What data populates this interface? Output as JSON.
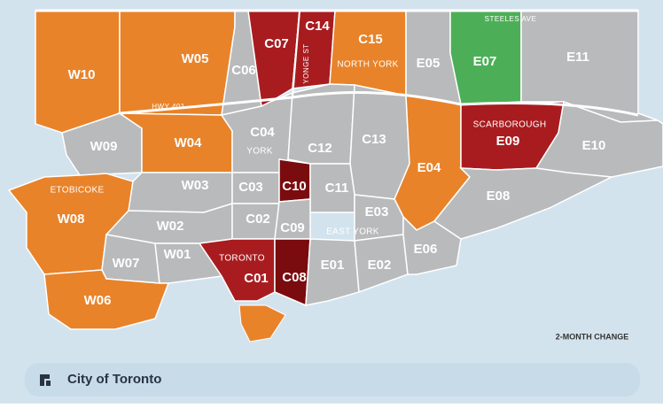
{
  "districts": [
    {
      "label": "W10",
      "color": "#e8832a"
    },
    {
      "label": "W05",
      "color": "#e8832a"
    },
    {
      "label": "C06",
      "color": "#b9babc"
    },
    {
      "label": "C07",
      "color": "#a81c1f"
    },
    {
      "label": "C14",
      "color": "#a81c1f"
    },
    {
      "label": "C15",
      "color": "#e8832a"
    },
    {
      "label": "E05",
      "color": "#b9babc"
    },
    {
      "label": "E07",
      "color": "#4caf57"
    },
    {
      "label": "E11",
      "color": "#b9babc"
    },
    {
      "label": "W09",
      "color": "#b9babc"
    },
    {
      "label": "W04",
      "color": "#e8832a"
    },
    {
      "label": "W08",
      "color": "#e8832a"
    },
    {
      "label": "W03",
      "color": "#b9babc"
    },
    {
      "label": "W02",
      "color": "#b9babc"
    },
    {
      "label": "W07",
      "color": "#b9babc"
    },
    {
      "label": "W01",
      "color": "#b9babc"
    },
    {
      "label": "W06",
      "color": "#e8832a"
    },
    {
      "label": "C04",
      "color": "#b9babc"
    },
    {
      "label": "C12",
      "color": "#b9babc"
    },
    {
      "label": "C13",
      "color": "#b9babc"
    },
    {
      "label": "E04",
      "color": "#e8832a"
    },
    {
      "label": "C03",
      "color": "#b9babc"
    },
    {
      "label": "C10",
      "color": "#7a0b0e"
    },
    {
      "label": "C11",
      "color": "#b9babc"
    },
    {
      "label": "C02",
      "color": "#b9babc"
    },
    {
      "label": "C09",
      "color": "#b9babc"
    },
    {
      "label": "E03",
      "color": "#b9babc"
    },
    {
      "label": "C01",
      "color": "#a81c1f"
    },
    {
      "label": "C08",
      "color": "#7a0b0e"
    },
    {
      "label": "E01",
      "color": "#b9babc"
    },
    {
      "label": "E02",
      "color": "#b9babc"
    },
    {
      "label": "E06",
      "color": "#b9babc"
    },
    {
      "label": "E09",
      "color": "#a81c1f"
    },
    {
      "label": "E10",
      "color": "#b9babc"
    },
    {
      "label": "E08",
      "color": "#b9babc"
    }
  ],
  "areas": [
    "ETOBICOKE",
    "NORTH YORK",
    "YORK",
    "EAST YORK",
    "TORONTO",
    "SCARBOROUGH"
  ],
  "roads": [
    "HWY 401",
    "STEELES AVE",
    "YONGE ST"
  ],
  "legend": "2-MONTH CHANGE",
  "footer": "City of Toronto"
}
